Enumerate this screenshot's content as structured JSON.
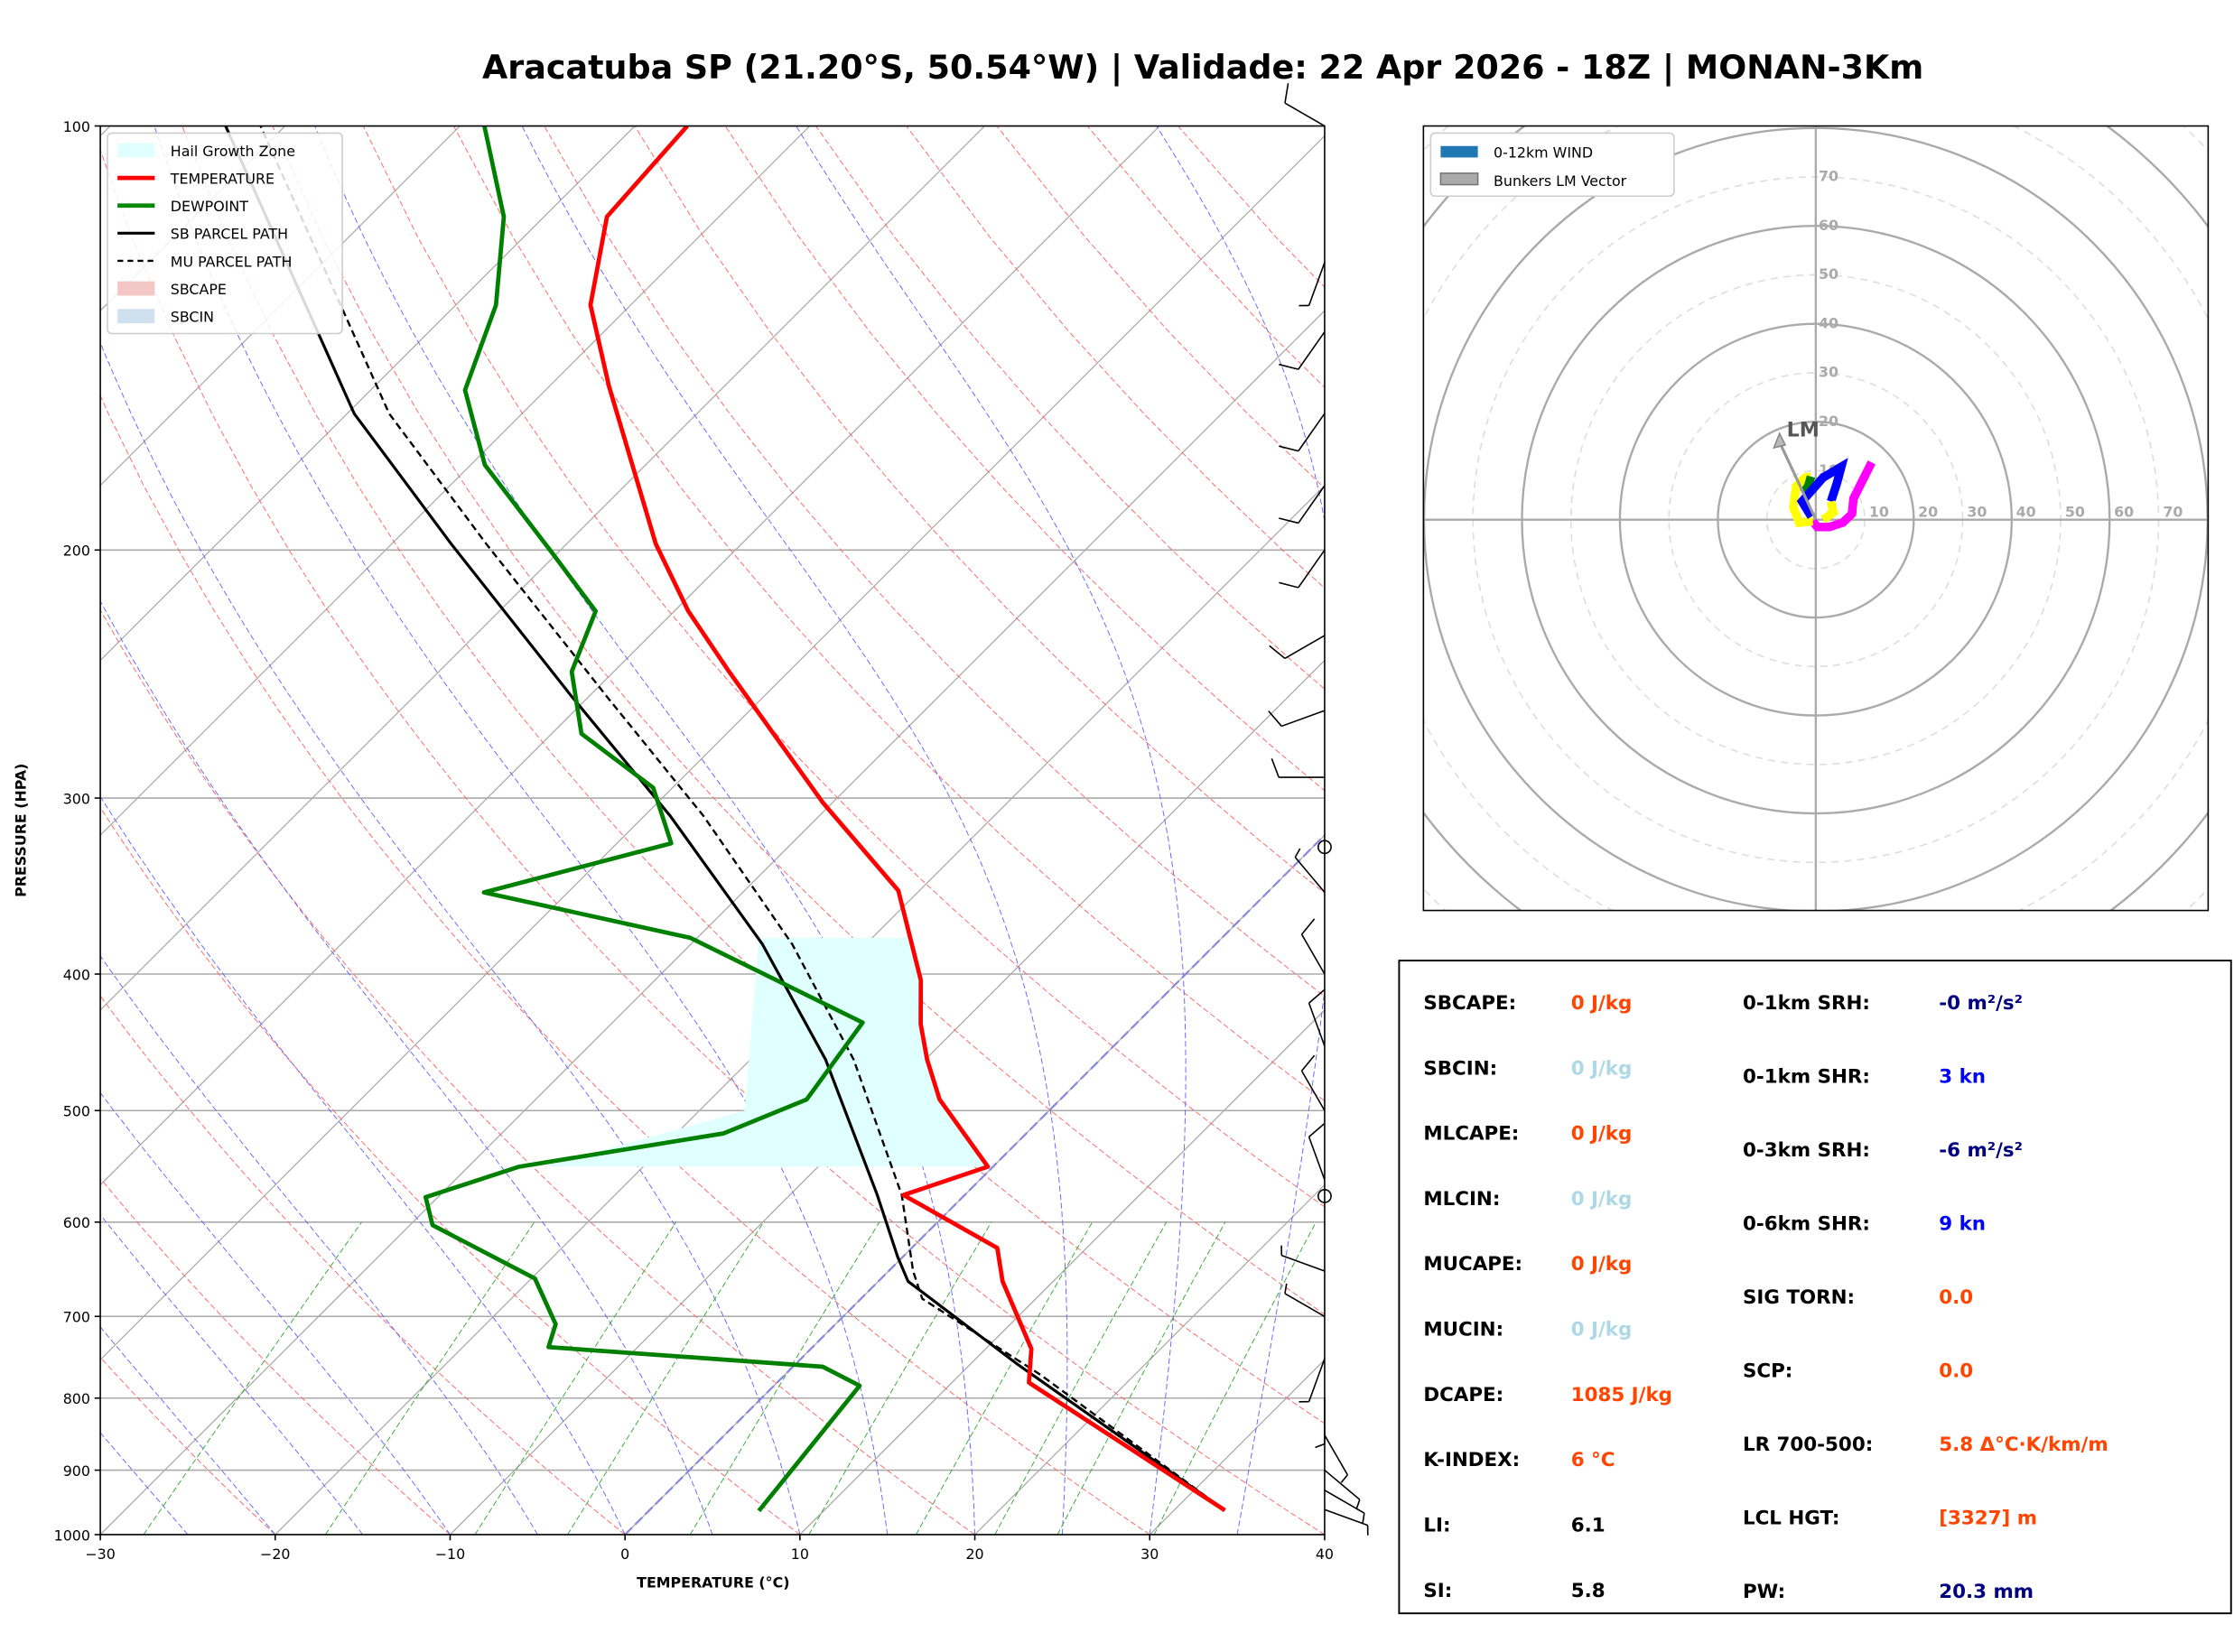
{
  "title": "Aracatuba SP (21.20°S, 50.54°W) | Validade: 22 Apr 2026 - 18Z | MONAN-3Km",
  "chart_data": [
    {
      "type": "line",
      "subtype": "skew-t log-p",
      "xlabel": "TEMPERATURE (°C)",
      "ylabel": "PRESSURE (HPA)",
      "xlim": [
        -30,
        40
      ],
      "ylim": [
        1000,
        100
      ],
      "x_ticks": [
        "−30",
        "−20",
        "−10",
        "0",
        "10",
        "20",
        "30",
        "40"
      ],
      "x_tick_values": [
        -30,
        -20,
        -10,
        0,
        10,
        20,
        30,
        40
      ],
      "y_ticks": [
        "100",
        "200",
        "300",
        "400",
        "500",
        "600",
        "700",
        "800",
        "900",
        "1000"
      ],
      "y_tick_values": [
        100,
        200,
        300,
        400,
        500,
        600,
        700,
        800,
        900,
        1000
      ],
      "legend_position": "top-left",
      "legend": [
        "Hail Growth Zone",
        "TEMPERATURE",
        "DEWPOINT",
        "SB PARCEL PATH",
        "MU PARCEL PATH",
        "SBCAPE",
        "SBCIN"
      ],
      "colors": {
        "temperature": "#ff0000",
        "dewpoint": "#008000",
        "parcel": "#000000",
        "hail": "#e0ffff",
        "sbcape": "#f4c7c7",
        "sbcin": "#cfe0ee"
      },
      "hail_growth_zone_hpa": [
        377,
        548
      ],
      "series": [
        {
          "name": "TEMPERATURE",
          "p": [
            961,
            780,
            738,
            661,
            626,
            574,
            548,
            491,
            460,
            434,
            404,
            349,
            302,
            244,
            221,
            198,
            153,
            134,
            116,
            100
          ],
          "t": [
            32.9,
            14.4,
            12.6,
            7.1,
            4.9,
            -3.5,
            -0.3,
            -6.9,
            -9.9,
            -12.3,
            -14.8,
            -21.2,
            -30.6,
            -43.4,
            -49.2,
            -54.9,
            -66.6,
            -72.3,
            -76.4,
            -77
          ]
        },
        {
          "name": "DEWPOINT",
          "p": [
            962,
            784,
            760,
            736,
            709,
            658,
            603,
            576,
            548,
            519,
            491,
            433,
            377,
            350,
            323,
            295,
            270,
            244,
            221,
            201,
            174,
            154,
            134,
            116,
            100
          ],
          "t": [
            6.3,
            4.9,
            1.7,
            -15.1,
            -16,
            -19.8,
            -28.7,
            -30.7,
            -27.1,
            -17.3,
            -14.5,
            -15.7,
            -30.4,
            -44.8,
            -36.9,
            -41.1,
            -48.3,
            -52.4,
            -54.5,
            -60.3,
            -69.2,
            -74.6,
            -77.7,
            -82.3,
            -88.6
          ]
        },
        {
          "name": "SB PARCEL PATH",
          "p": [
            961,
            757,
            661,
            635,
            574,
            460,
            381,
            309,
            254,
            198,
            160,
            100
          ],
          "t": [
            32.9,
            12.7,
            1.7,
            -0.3,
            -5,
            -15.7,
            -25.9,
            -38.5,
            -51,
            -66.6,
            -79.6,
            -103.4
          ]
        },
        {
          "name": "MU PARCEL PATH",
          "p": [
            961,
            770,
            680,
            650,
            574,
            460,
            381,
            309,
            254,
            198,
            160,
            100
          ],
          "t": [
            32.9,
            14.6,
            3.5,
            1.4,
            -3.6,
            -14.1,
            -24.2,
            -36.6,
            -49,
            -64.6,
            -77.6,
            -101.4
          ]
        }
      ],
      "level_markers_hpa": [
        325,
        575
      ],
      "wind_barbs": [
        {
          "p": 960,
          "dir": 110,
          "spd": 5
        },
        {
          "p": 930,
          "dir": 120,
          "spd": 5
        },
        {
          "p": 900,
          "dir": 130,
          "spd": 5
        },
        {
          "p": 850,
          "dir": 150,
          "spd": 5
        },
        {
          "p": 800,
          "dir": 180,
          "spd": 5
        },
        {
          "p": 750,
          "dir": 200,
          "spd": 5
        },
        {
          "p": 700,
          "dir": 300,
          "spd": 5
        },
        {
          "p": 650,
          "dir": 290,
          "spd": 5
        },
        {
          "p": 560,
          "dir": 340,
          "spd": 10
        },
        {
          "p": 500,
          "dir": 330,
          "spd": 10
        },
        {
          "p": 450,
          "dir": 340,
          "spd": 10
        },
        {
          "p": 400,
          "dir": 330,
          "spd": 10
        },
        {
          "p": 350,
          "dir": 320,
          "spd": 5
        },
        {
          "p": 290,
          "dir": 270,
          "spd": 10
        },
        {
          "p": 260,
          "dir": 250,
          "spd": 10
        },
        {
          "p": 230,
          "dir": 240,
          "spd": 10
        },
        {
          "p": 200,
          "dir": 215,
          "spd": 10
        },
        {
          "p": 180,
          "dir": 215,
          "spd": 10
        },
        {
          "p": 160,
          "dir": 215,
          "spd": 10
        },
        {
          "p": 140,
          "dir": 215,
          "spd": 10
        },
        {
          "p": 125,
          "dir": 200,
          "spd": 5
        },
        {
          "p": 100,
          "dir": 300,
          "spd": 10
        }
      ]
    },
    {
      "type": "line",
      "subtype": "hodograph",
      "legend_position": "top-left",
      "legend": [
        "0-12km WIND",
        "Bunkers LM Vector"
      ],
      "ring_labels": [
        "10",
        "20",
        "30",
        "40",
        "50",
        "60",
        "70"
      ],
      "ring_values": [
        10,
        20,
        30,
        40,
        50,
        60,
        70
      ],
      "lm_label": "LM",
      "lm_vector": {
        "u": -7.4,
        "v": 17.6
      },
      "segments": [
        {
          "color": "#ff00ff",
          "u": [
            11.4,
            7.7,
            7.4,
            5.5,
            2.8,
            0.3,
            -0.6
          ],
          "v": [
            11.7,
            4.3,
            1.2,
            -0.6,
            -1.5,
            -1.5,
            -0.3
          ]
        },
        {
          "color": "#ffff00",
          "u": [
            -0.6,
            -3.4,
            -4.6,
            -4.0,
            -2.2,
            -1.0
          ],
          "v": [
            -0.3,
            -0.6,
            2.5,
            6.8,
            8.6,
            8.8
          ]
        },
        {
          "color": "#008000",
          "u": [
            -1.0,
            -1.5,
            -2.5
          ],
          "v": [
            8.8,
            7.0,
            5.5
          ]
        },
        {
          "color": "#0000ff",
          "u": [
            -0.9,
            -2.8,
            1.5,
            5.2,
            4.3,
            3.1
          ],
          "v": [
            0.6,
            3.7,
            8.6,
            10.8,
            7.4,
            3.7
          ]
        },
        {
          "color": "#ffff00",
          "u": [
            3.1,
            3.6,
            1.5
          ],
          "v": [
            3.7,
            1.5,
            0.0
          ]
        }
      ]
    }
  ],
  "stats": {
    "left": [
      {
        "label": "SBCAPE:",
        "value": "0 J/kg",
        "color": "#ff4500"
      },
      {
        "label": "SBCIN:",
        "value": "0 J/kg",
        "color": "#add8e6"
      },
      {
        "label": "MLCAPE:",
        "value": "0 J/kg",
        "color": "#ff4500"
      },
      {
        "label": "MLCIN:",
        "value": "0 J/kg",
        "color": "#add8e6"
      },
      {
        "label": "MUCAPE:",
        "value": "0 J/kg",
        "color": "#ff4500"
      },
      {
        "label": "MUCIN:",
        "value": "0 J/kg",
        "color": "#add8e6"
      },
      {
        "label": "DCAPE:",
        "value": "1085 J/kg",
        "color": "#ff4500"
      },
      {
        "label": "K-INDEX:",
        "value": "6 °C",
        "color": "#ff4500"
      },
      {
        "label": "LI:",
        "value": "6.1",
        "color": "#000000"
      },
      {
        "label": "SI:",
        "value": "5.8",
        "color": "#000000"
      }
    ],
    "right": [
      {
        "label": "0-1km SRH:",
        "value": "-0 m²/s²",
        "color": "#000080"
      },
      {
        "label": "0-1km SHR:",
        "value": "3 kn",
        "color": "#0000ff"
      },
      {
        "label": "0-3km SRH:",
        "value": "-6 m²/s²",
        "color": "#000080"
      },
      {
        "label": "0-6km SHR:",
        "value": "9 kn",
        "color": "#0000ff"
      },
      {
        "label": "SIG TORN:",
        "value": "0.0",
        "color": "#ff4500"
      },
      {
        "label": "SCP:",
        "value": "0.0",
        "color": "#ff4500"
      },
      {
        "label": "LR 700-500:",
        "value": "5.8 Δ°C·K/km/m",
        "color": "#ff4500"
      },
      {
        "label": "LCL HGT:",
        "value": "[3327] m",
        "color": "#ff4500"
      },
      {
        "label": "PW:",
        "value": "20.3 mm",
        "color": "#000080"
      }
    ]
  }
}
